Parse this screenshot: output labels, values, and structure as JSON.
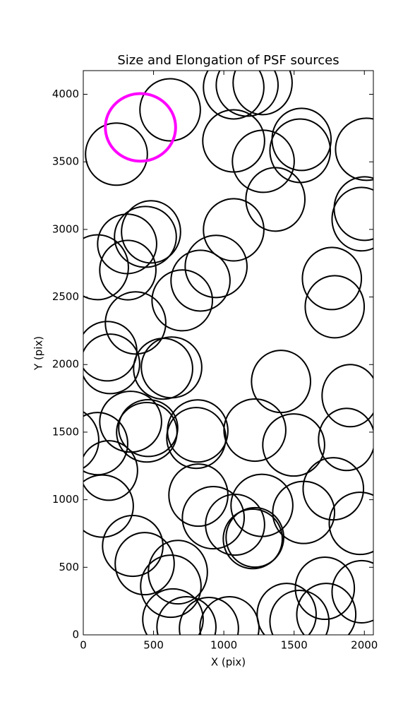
{
  "chart_data": {
    "type": "ellipse",
    "title": "Size and Elongation of PSF sources",
    "xlabel": "X (pix)",
    "ylabel": "Y (pix)",
    "xlim": [
      0,
      2064
    ],
    "ylim": [
      0,
      4175
    ],
    "xticks": [
      0,
      500,
      1000,
      1500,
      2000
    ],
    "yticks": [
      0,
      500,
      1000,
      1500,
      2000,
      2500,
      3000,
      3500,
      4000
    ],
    "color": "#000000",
    "sources": {
      "x": [
        236,
        618,
        1070,
        1166,
        1276,
        1553,
        1070,
        1543,
        1281,
        1367,
        2015,
        2000,
        1980,
        482,
        442,
        312,
        317,
        101,
        1070,
        945,
        834,
        704,
        1769,
        1789,
        372,
        171,
        191,
        568,
        628,
        1407,
        1899,
        101,
        -110,
        337,
        462,
        452,
        814,
        804,
        1221,
        1497,
        1874,
        181,
        136,
        819,
        1271,
        1568,
        1779,
        1970,
        925,
        1080,
        1221,
        1206,
        352,
        437,
        673,
        623,
        638,
        734,
        894,
        1040,
        1447,
        1538,
        1719,
        1729,
        1980
      ],
      "y": [
        3557,
        3885,
        4052,
        4068,
        4084,
        3666,
        3655,
        3582,
        3504,
        3222,
        3593,
        3154,
        3076,
        2982,
        2945,
        2893,
        2699,
        2720,
        2997,
        2726,
        2621,
        2475,
        2637,
        2428,
        2308,
        2099,
        2005,
        1969,
        1979,
        1875,
        1770,
        1415,
        1442,
        1577,
        1530,
        1499,
        1509,
        1457,
        1515,
        1405,
        1446,
        1216,
        953,
        1034,
        958,
        906,
        1081,
        825,
        867,
        815,
        721,
        710,
        658,
        527,
        464,
        360,
        115,
        57,
        47,
        52,
        151,
        99,
        345,
        151,
        319
      ],
      "width": [
        440,
        430,
        430,
        440,
        420,
        420,
        440,
        430,
        440,
        420,
        440,
        430,
        420,
        420,
        440,
        420,
        400,
        440,
        430,
        440,
        420,
        430,
        420,
        420,
        430,
        420,
        420,
        420,
        430,
        420,
        400,
        430,
        440,
        440,
        420,
        430,
        430,
        420,
        440,
        440,
        400,
        410,
        440,
        420,
        440,
        440,
        430,
        440,
        440,
        420,
        410,
        420,
        430,
        420,
        420,
        430,
        430,
        420,
        420,
        420,
        420,
        420,
        420,
        420,
        420
      ],
      "height": [
        460,
        460,
        470,
        460,
        470,
        460,
        460,
        470,
        460,
        470,
        460,
        470,
        470,
        460,
        450,
        440,
        440,
        480,
        460,
        460,
        450,
        450,
        460,
        460,
        460,
        440,
        440,
        450,
        450,
        460,
        460,
        460,
        480,
        450,
        420,
        440,
        460,
        450,
        460,
        460,
        460,
        440,
        460,
        460,
        460,
        460,
        460,
        460,
        460,
        450,
        440,
        440,
        450,
        460,
        470,
        460,
        450,
        450,
        460,
        460,
        460,
        460,
        460,
        460,
        460
      ]
    },
    "reference": {
      "x": 407,
      "y": 3755,
      "width": 500,
      "height": 500,
      "color": "#ff00ff"
    }
  }
}
